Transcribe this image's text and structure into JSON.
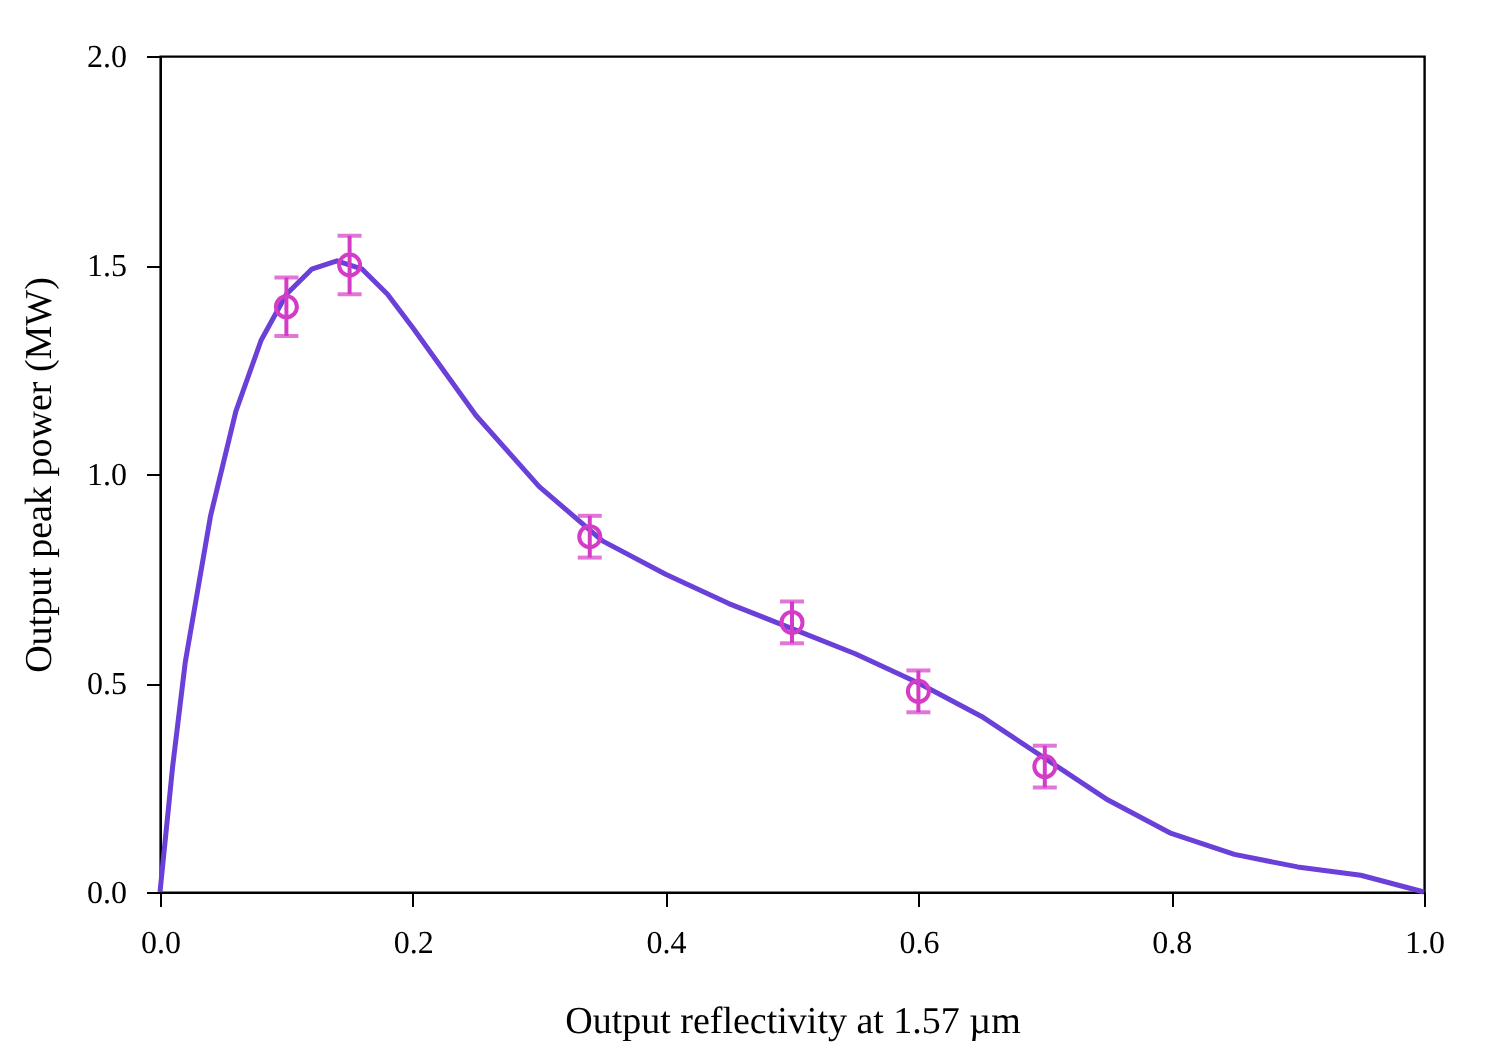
{
  "chart_data": {
    "type": "line",
    "xlabel": "Output reflectivity at 1.57 µm",
    "ylabel": "Output peak power (MW)",
    "xlim": [
      0,
      1
    ],
    "ylim": [
      0,
      2
    ],
    "xticks": [
      {
        "value": 0,
        "label": "0.0"
      },
      {
        "value": 0.2,
        "label": "0.2"
      },
      {
        "value": 0.4,
        "label": "0.4"
      },
      {
        "value": 0.6,
        "label": "0.6"
      },
      {
        "value": 0.8,
        "label": "0.8"
      },
      {
        "value": 1,
        "label": "1.0"
      }
    ],
    "yticks": [
      {
        "value": 0,
        "label": "0.0"
      },
      {
        "value": 0.5,
        "label": "0.5"
      },
      {
        "value": 1,
        "label": "1.0"
      },
      {
        "value": 1.5,
        "label": "1.5"
      },
      {
        "value": 2,
        "label": "2.0"
      }
    ],
    "grid": false,
    "series": [
      {
        "color": "#6a40d8",
        "line_style": "solid",
        "marker": "none",
        "x": [
          0,
          0.01,
          0.02,
          0.04,
          0.06,
          0.08,
          0.1,
          0.12,
          0.14,
          0.16,
          0.18,
          0.2,
          0.25,
          0.3,
          0.35,
          0.4,
          0.45,
          0.5,
          0.55,
          0.6,
          0.65,
          0.7,
          0.75,
          0.8,
          0.85,
          0.9,
          0.95,
          1
        ],
        "values": [
          0,
          0.3,
          0.55,
          0.9,
          1.15,
          1.32,
          1.43,
          1.49,
          1.51,
          1.49,
          1.43,
          1.35,
          1.14,
          0.97,
          0.84,
          0.76,
          0.69,
          0.63,
          0.57,
          0.5,
          0.42,
          0.32,
          0.22,
          0.14,
          0.09,
          0.06,
          0.04,
          0
        ]
      },
      {
        "type": "scatter",
        "color": "#d43cc8",
        "marker": "circle",
        "x": [
          0.1,
          0.15,
          0.34,
          0.5,
          0.6,
          0.7
        ],
        "values": [
          1.4,
          1.5,
          0.85,
          0.645,
          0.48,
          0.3
        ],
        "errors": [
          0.07,
          0.07,
          0.05,
          0.05,
          0.05,
          0.05
        ]
      }
    ]
  }
}
